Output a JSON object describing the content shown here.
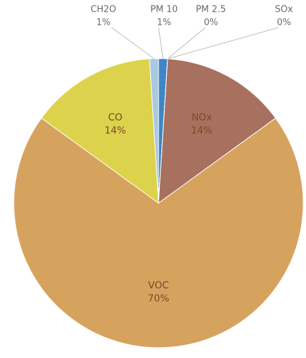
{
  "chart_data": {
    "type": "pie",
    "categories": [
      "CH2O",
      "PM 10",
      "PM 2.5",
      "SOx",
      "NOx",
      "VOC",
      "CO"
    ],
    "values": [
      1,
      1,
      0,
      0,
      14,
      70,
      14
    ],
    "value_labels": [
      "1%",
      "1%",
      "0%",
      "0%",
      "14%",
      "70%",
      "14%"
    ],
    "colors": [
      "#a9c9df",
      "#3f86c4",
      "#1f5f9c",
      "#5ea6cc",
      "#a8705e",
      "#d6a35f",
      "#dcd24c"
    ]
  }
}
